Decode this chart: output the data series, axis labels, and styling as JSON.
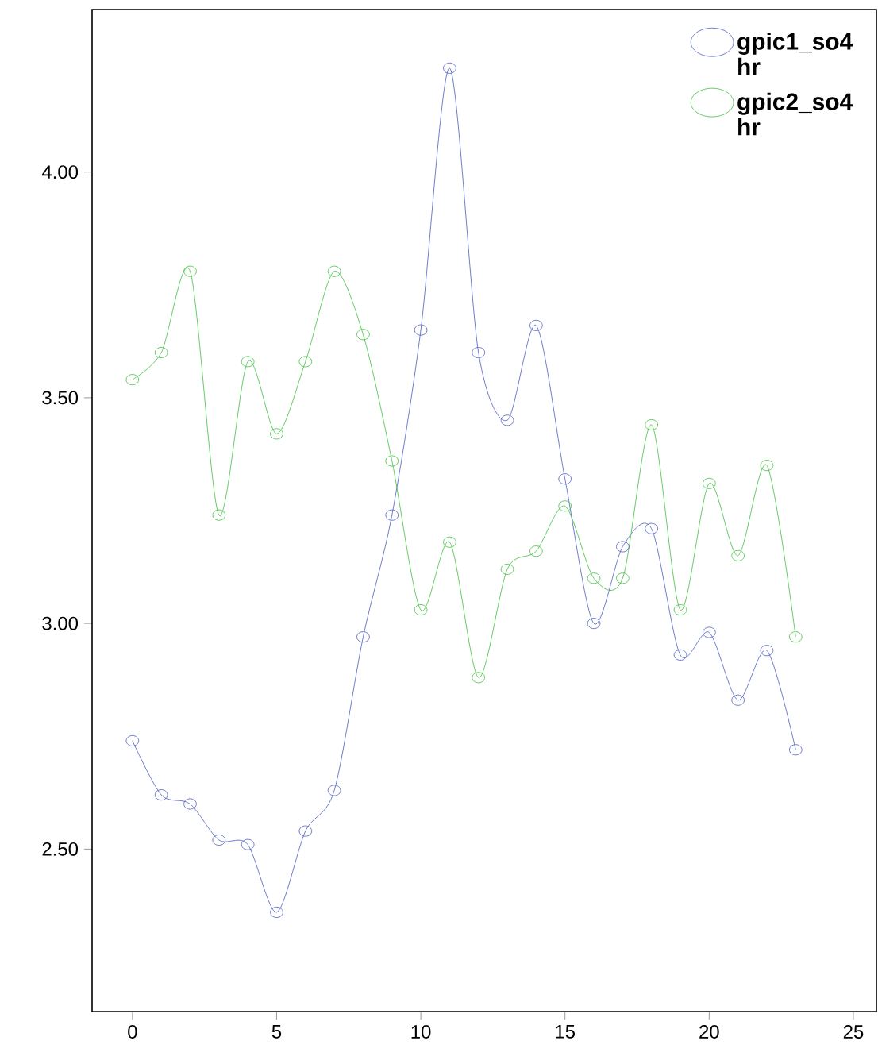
{
  "chart_data": {
    "type": "line",
    "x": [
      0,
      1,
      2,
      3,
      4,
      5,
      6,
      7,
      8,
      9,
      10,
      11,
      12,
      13,
      14,
      15,
      16,
      17,
      18,
      19,
      20,
      21,
      22,
      23
    ],
    "series": [
      {
        "name": "gpic1_so4 hr",
        "color": "#4a5cc0",
        "values": [
          2.74,
          2.62,
          2.6,
          2.52,
          2.51,
          2.36,
          2.54,
          2.63,
          2.97,
          3.24,
          3.65,
          4.23,
          3.6,
          3.45,
          3.66,
          3.32,
          3.0,
          3.17,
          3.21,
          2.93,
          2.98,
          2.83,
          2.94,
          2.72
        ]
      },
      {
        "name": "gpic2_so4 hr",
        "color": "#3cbf3c",
        "values": [
          3.54,
          3.6,
          3.78,
          3.24,
          3.58,
          3.42,
          3.58,
          3.78,
          3.64,
          3.36,
          3.03,
          3.18,
          2.88,
          3.12,
          3.16,
          3.26,
          3.1,
          3.1,
          3.44,
          3.03,
          3.31,
          3.15,
          3.35,
          2.97
        ]
      }
    ],
    "xlim": [
      -1.4,
      25.8
    ],
    "ylim": [
      2.14,
      4.36
    ],
    "xticks": [
      0,
      5,
      10,
      15,
      20,
      25
    ],
    "yticks": [
      {
        "value": 2.5,
        "label": "2.50"
      },
      {
        "value": 3.0,
        "label": "3.00"
      },
      {
        "value": 3.5,
        "label": "3.50"
      },
      {
        "value": 4.0,
        "label": "4.00"
      }
    ],
    "marker": "circle",
    "legend": "top right",
    "grid": false
  }
}
